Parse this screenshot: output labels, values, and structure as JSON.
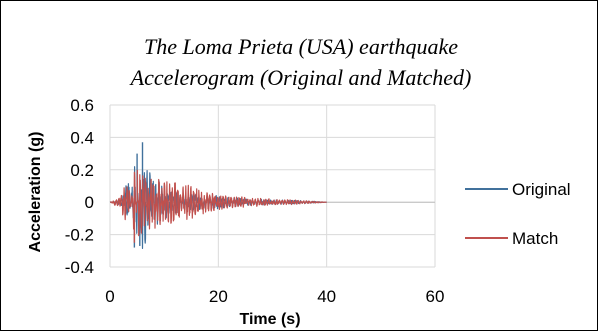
{
  "chart_data": {
    "type": "line",
    "title_line1": "The Loma Prieta (USA) earthquake",
    "title_line2": "Accelerogram (Original and Matched)",
    "xlabel": "Time (s)",
    "ylabel": "Acceleration (g)",
    "xlim": [
      0,
      60
    ],
    "ylim": [
      -0.4,
      0.6
    ],
    "xticks": [
      "0",
      "20",
      "40",
      "60"
    ],
    "yticks": [
      "0.6",
      "0.4",
      "0.2",
      "0",
      "-0.2",
      "-0.4"
    ],
    "grid": true,
    "legend_position": "right",
    "duration_s": 40,
    "series": [
      {
        "name": "Original",
        "color": "#41719c",
        "envelope_peaks": [
          [
            0,
            0.0
          ],
          [
            2,
            0.02
          ],
          [
            3.5,
            0.15
          ],
          [
            4.5,
            -0.28
          ],
          [
            5,
            0.3
          ],
          [
            5.5,
            -0.27
          ],
          [
            6,
            0.37
          ],
          [
            7,
            0.2
          ],
          [
            10,
            0.1
          ],
          [
            15,
            0.05
          ],
          [
            20,
            0.04
          ],
          [
            25,
            0.02
          ],
          [
            30,
            0.015
          ],
          [
            35,
            0.01
          ],
          [
            40,
            0.0
          ]
        ]
      },
      {
        "name": "Match",
        "color": "#c0504d",
        "envelope_peaks": [
          [
            0,
            0.0
          ],
          [
            2,
            0.05
          ],
          [
            3.5,
            0.18
          ],
          [
            4.5,
            -0.25
          ],
          [
            5,
            0.22
          ],
          [
            6,
            0.2
          ],
          [
            7,
            0.18
          ],
          [
            10,
            0.14
          ],
          [
            12,
            0.13
          ],
          [
            15,
            0.1
          ],
          [
            20,
            0.05
          ],
          [
            25,
            0.03
          ],
          [
            30,
            0.02
          ],
          [
            35,
            0.012
          ],
          [
            40,
            0.0
          ]
        ]
      }
    ]
  }
}
